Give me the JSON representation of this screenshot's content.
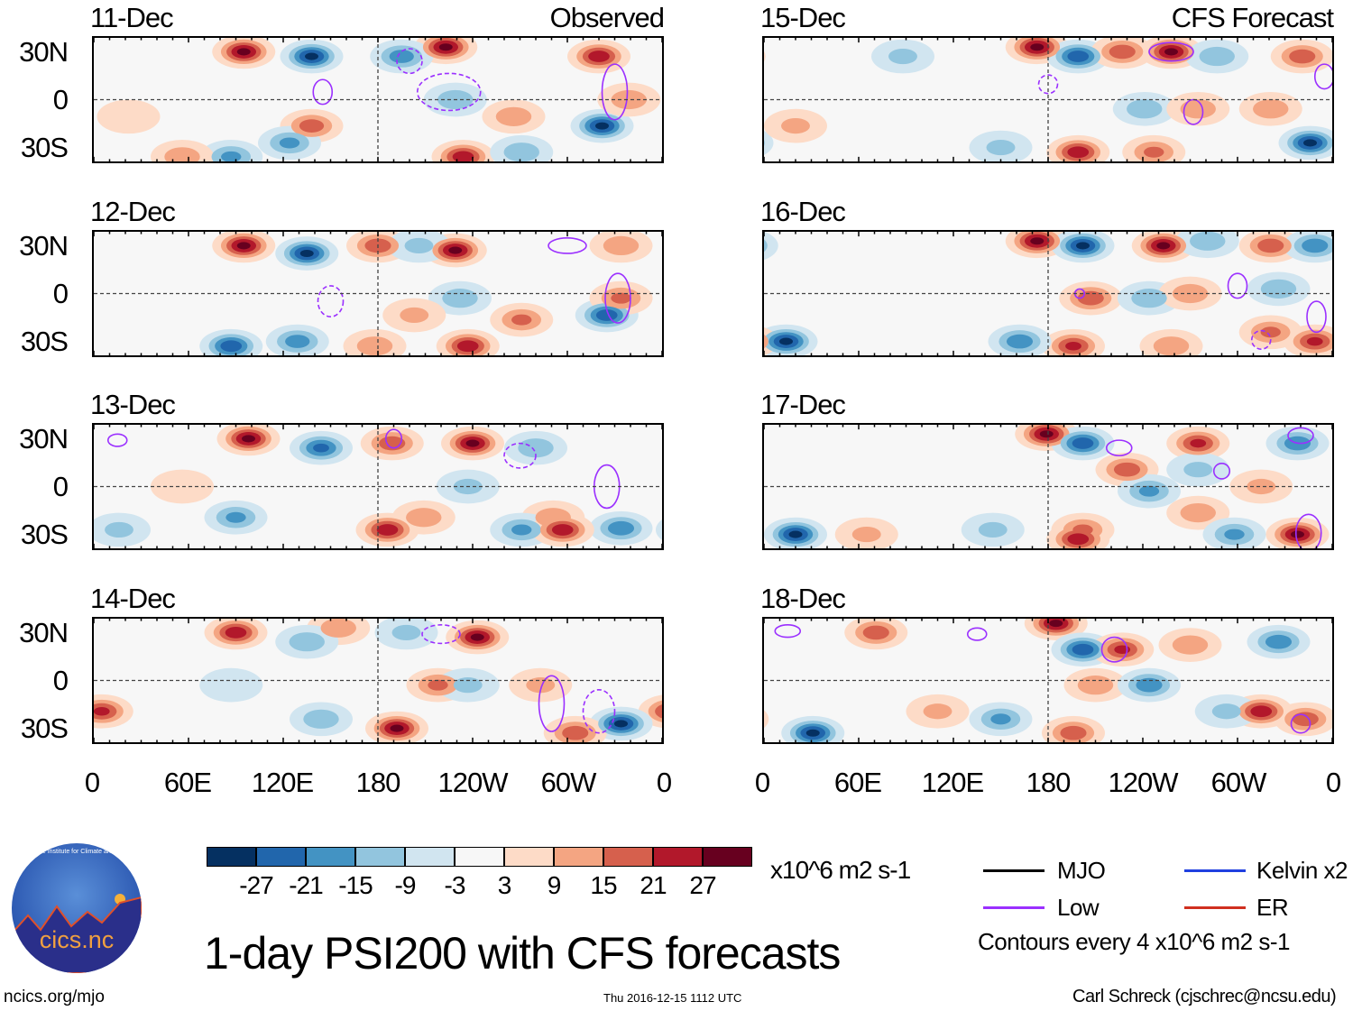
{
  "header": {
    "observed_label": "Observed",
    "forecast_label": "CFS Forecast"
  },
  "lat_labels": [
    "30N",
    "0",
    "30S"
  ],
  "lon_labels": [
    "0",
    "60E",
    "120E",
    "180",
    "120W",
    "60W",
    "0"
  ],
  "panels": [
    {
      "date": "11-Dec",
      "features": [
        [
          95,
          31,
          30
        ],
        [
          138,
          28,
          -30
        ],
        [
          223,
          34,
          30
        ],
        [
          320,
          28,
          27
        ],
        [
          195,
          28,
          -20
        ],
        [
          229,
          0,
          -15
        ],
        [
          322,
          -17,
          -30
        ],
        [
          138,
          -17,
          20
        ],
        [
          124,
          -28,
          -18
        ],
        [
          234,
          -37,
          27
        ],
        [
          266,
          -11,
          15
        ],
        [
          339,
          0,
          15
        ],
        [
          87,
          -37,
          -18
        ],
        [
          22,
          -11,
          9
        ],
        [
          56,
          -37,
          15
        ],
        [
          271,
          -34,
          -15
        ]
      ],
      "contours": [
        [
          330,
          5,
          8,
          18,
          0
        ],
        [
          225,
          5,
          20,
          12,
          1
        ],
        [
          200,
          25,
          8,
          8,
          1
        ],
        [
          145,
          5,
          6,
          8,
          0
        ]
      ]
    },
    {
      "date": "12-Dec",
      "features": [
        [
          95,
          31,
          30
        ],
        [
          135,
          26,
          -30
        ],
        [
          180,
          31,
          21
        ],
        [
          229,
          28,
          30
        ],
        [
          206,
          31,
          -12
        ],
        [
          334,
          31,
          15
        ],
        [
          325,
          -14,
          -27
        ],
        [
          334,
          -3,
          18
        ],
        [
          232,
          -3,
          -15
        ],
        [
          271,
          -17,
          18
        ],
        [
          237,
          -34,
          27
        ],
        [
          129,
          -31,
          -20
        ],
        [
          87,
          -34,
          -27
        ],
        [
          178,
          -34,
          15
        ],
        [
          203,
          -14,
          12
        ]
      ],
      "contours": [
        [
          332,
          -3,
          8,
          16,
          0
        ],
        [
          300,
          31,
          12,
          5,
          0
        ],
        [
          150,
          -5,
          8,
          10,
          1
        ]
      ]
    },
    {
      "date": "13-Dec",
      "features": [
        [
          98,
          31,
          30
        ],
        [
          144,
          25,
          -24
        ],
        [
          189,
          28,
          21
        ],
        [
          240,
          28,
          30
        ],
        [
          280,
          25,
          -15
        ],
        [
          291,
          -20,
          15
        ],
        [
          334,
          -27,
          -21
        ],
        [
          209,
          -20,
          15
        ],
        [
          237,
          0,
          -12
        ],
        [
          90,
          -20,
          -18
        ],
        [
          186,
          -28,
          27
        ],
        [
          271,
          -28,
          -18
        ],
        [
          297,
          -28,
          27
        ],
        [
          16,
          -28,
          -12
        ],
        [
          56,
          0,
          6
        ]
      ],
      "contours": [
        [
          325,
          0,
          8,
          14,
          0
        ],
        [
          15,
          30,
          6,
          4,
          0
        ],
        [
          190,
          31,
          5,
          6,
          0
        ],
        [
          270,
          20,
          10,
          8,
          1
        ]
      ]
    },
    {
      "date": "14-Dec",
      "features": [
        [
          90,
          31,
          27
        ],
        [
          155,
          34,
          15
        ],
        [
          135,
          25,
          -15
        ],
        [
          243,
          28,
          30
        ],
        [
          198,
          31,
          -12
        ],
        [
          5,
          -20,
          24
        ],
        [
          218,
          -3,
          18
        ],
        [
          237,
          -3,
          -12
        ],
        [
          334,
          -28,
          -30
        ],
        [
          192,
          -31,
          30
        ],
        [
          144,
          -25,
          -15
        ],
        [
          305,
          -34,
          21
        ],
        [
          87,
          -3,
          -9
        ],
        [
          283,
          -3,
          12
        ]
      ],
      "contours": [
        [
          290,
          -15,
          8,
          18,
          0
        ],
        [
          320,
          -20,
          10,
          14,
          1
        ],
        [
          220,
          30,
          12,
          6,
          1
        ]
      ]
    },
    {
      "date": "15-Dec",
      "features": [
        [
          173,
          34,
          30
        ],
        [
          199,
          28,
          -27
        ],
        [
          258,
          31,
          30
        ],
        [
          227,
          31,
          21
        ],
        [
          287,
          28,
          -15
        ],
        [
          341,
          28,
          21
        ],
        [
          199,
          -34,
          27
        ],
        [
          346,
          -28,
          -30
        ],
        [
          241,
          -6,
          -15
        ],
        [
          275,
          -6,
          15
        ],
        [
          321,
          -6,
          15
        ],
        [
          150,
          -31,
          -12
        ],
        [
          20,
          -17,
          12
        ],
        [
          88,
          28,
          -12
        ],
        [
          247,
          -34,
          18
        ]
      ],
      "contours": [
        [
          258,
          31,
          14,
          6,
          0
        ],
        [
          272,
          -8,
          6,
          8,
          0
        ],
        [
          355,
          15,
          6,
          8,
          0
        ],
        [
          180,
          10,
          6,
          6,
          1
        ]
      ]
    },
    {
      "date": "16-Dec",
      "features": [
        [
          173,
          34,
          30
        ],
        [
          202,
          31,
          -30
        ],
        [
          253,
          31,
          30
        ],
        [
          281,
          34,
          -15
        ],
        [
          321,
          31,
          21
        ],
        [
          349,
          31,
          -21
        ],
        [
          207,
          -3,
          21
        ],
        [
          244,
          -3,
          -15
        ],
        [
          270,
          0,
          15
        ],
        [
          326,
          3,
          -15
        ],
        [
          196,
          -34,
          24
        ],
        [
          162,
          -31,
          -21
        ],
        [
          14,
          -31,
          -30
        ],
        [
          349,
          -31,
          24
        ],
        [
          321,
          -25,
          18
        ],
        [
          258,
          -34,
          15
        ]
      ],
      "contours": [
        [
          300,
          5,
          6,
          8,
          0
        ],
        [
          350,
          -15,
          6,
          10,
          0
        ],
        [
          200,
          0,
          3,
          3,
          0
        ],
        [
          315,
          -30,
          6,
          6,
          1
        ]
      ]
    },
    {
      "date": "17-Dec",
      "features": [
        [
          179,
          34,
          30
        ],
        [
          202,
          28,
          -27
        ],
        [
          230,
          11,
          21
        ],
        [
          275,
          28,
          24
        ],
        [
          275,
          11,
          -12
        ],
        [
          338,
          28,
          -21
        ],
        [
          244,
          -3,
          -18
        ],
        [
          275,
          -17,
          15
        ],
        [
          202,
          -28,
          18
        ],
        [
          145,
          -28,
          -12
        ],
        [
          338,
          -31,
          30
        ],
        [
          20,
          -31,
          -30
        ],
        [
          65,
          -31,
          12
        ],
        [
          298,
          -31,
          -18
        ],
        [
          199,
          -34,
          27
        ],
        [
          315,
          0,
          12
        ]
      ],
      "contours": [
        [
          225,
          25,
          8,
          5,
          0
        ],
        [
          345,
          -30,
          8,
          12,
          0
        ],
        [
          290,
          10,
          5,
          5,
          0
        ],
        [
          340,
          33,
          8,
          5,
          0
        ]
      ]
    },
    {
      "date": "18-Dec",
      "features": [
        [
          185,
          37,
          30
        ],
        [
          202,
          20,
          -27
        ],
        [
          227,
          20,
          24
        ],
        [
          210,
          -3,
          15
        ],
        [
          244,
          -3,
          -21
        ],
        [
          270,
          23,
          15
        ],
        [
          326,
          25,
          -21
        ],
        [
          315,
          -20,
          27
        ],
        [
          343,
          -25,
          21
        ],
        [
          293,
          -20,
          -12
        ],
        [
          150,
          -25,
          -18
        ],
        [
          31,
          -34,
          -30
        ],
        [
          71,
          31,
          21
        ],
        [
          110,
          -20,
          12
        ],
        [
          196,
          -34,
          21
        ]
      ],
      "contours": [
        [
          222,
          20,
          8,
          8,
          0
        ],
        [
          340,
          -28,
          6,
          6,
          0
        ],
        [
          135,
          30,
          6,
          4,
          0
        ],
        [
          15,
          32,
          8,
          4,
          0
        ]
      ]
    }
  ],
  "colorbar": {
    "colors": [
      "#053061",
      "#2166ac",
      "#4393c3",
      "#92c5de",
      "#d1e5f0",
      "#f7f7f7",
      "#fddbc7",
      "#f4a582",
      "#d6604d",
      "#b2182b",
      "#67001f"
    ],
    "labels": [
      "-27",
      "-21",
      "-15",
      "-9",
      "-3",
      "3",
      "9",
      "15",
      "21",
      "27"
    ],
    "units": "x10^6 m2 s-1"
  },
  "legend": {
    "mjo": "MJO",
    "low": "Low",
    "kelvin": "Kelvin x2",
    "er": "ER",
    "contour_note": "Contours every 4 x10^6 m2 s-1",
    "colors": {
      "mjo": "#000000",
      "low": "#9b30ff",
      "kelvin": "#2040e0",
      "er": "#d03020"
    }
  },
  "title": "1-day PSI200 with CFS forecasts",
  "logo_text": "cics.nc",
  "logo_ring": "Cooperative Institute for Climate and Satellites",
  "footer": {
    "url": "ncics.org/mjo",
    "timestamp": "Thu 2016-12-15 1112 UTC",
    "author": "Carl Schreck (cjschrec@ncsu.edu)"
  }
}
